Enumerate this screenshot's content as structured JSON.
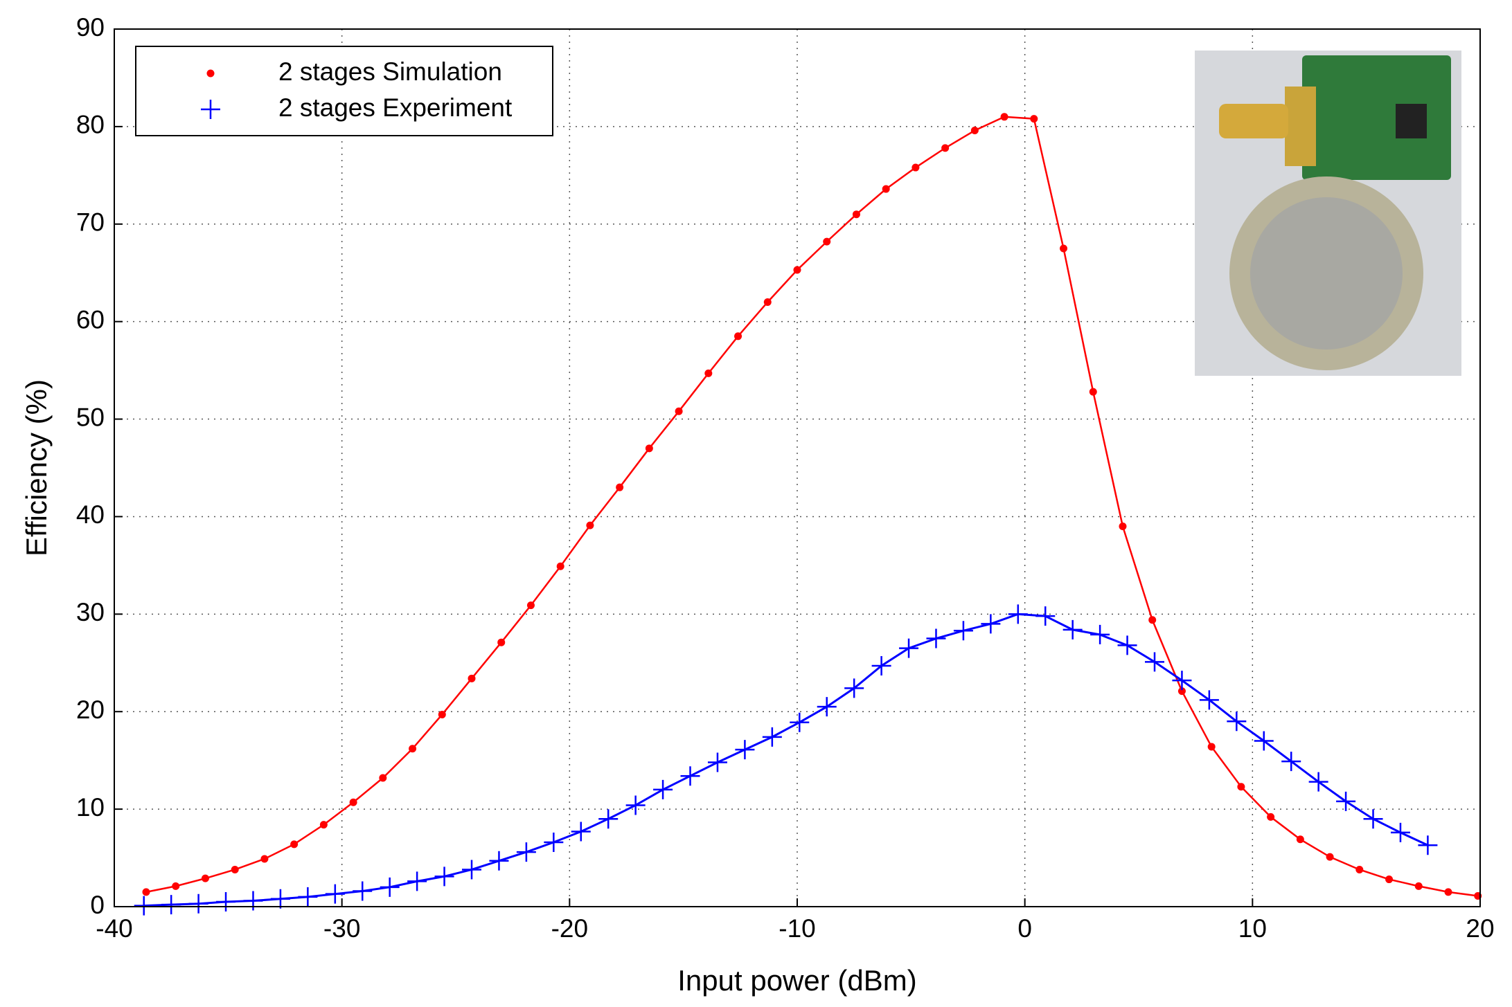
{
  "chart_data": {
    "type": "line",
    "xlabel": "Input power (dBm)",
    "ylabel": "Efficiency (%)",
    "xlim": [
      -40,
      20
    ],
    "xticks": [
      -40,
      -30,
      -20,
      -10,
      0,
      10,
      20
    ],
    "ylim": [
      0,
      90
    ],
    "yticks": [
      0,
      10,
      20,
      30,
      40,
      50,
      60,
      70,
      80,
      90
    ],
    "grid": true,
    "legend": "upper left",
    "series": [
      {
        "name": "2 stages Simulation",
        "color": "#ff0000",
        "marker": "dot",
        "x": [
          -38.6,
          -37.3,
          -36.0,
          -34.7,
          -33.4,
          -32.1,
          -30.8,
          -29.5,
          -28.2,
          -26.9,
          -25.6,
          -24.3,
          -23.0,
          -21.7,
          -20.4,
          -19.1,
          -17.8,
          -16.5,
          -15.2,
          -13.9,
          -12.6,
          -11.3,
          -10.0,
          -8.7,
          -7.4,
          -6.1,
          -4.8,
          -3.5,
          -2.2,
          -0.9,
          0.4,
          1.7,
          3.0,
          4.3,
          5.6,
          6.9,
          8.2,
          9.5,
          10.8,
          12.1,
          13.4,
          14.7,
          16.0,
          17.3,
          18.6,
          19.9
        ],
        "values": [
          1.5,
          2.1,
          2.9,
          3.8,
          4.9,
          6.4,
          8.4,
          10.7,
          13.2,
          16.2,
          19.7,
          23.4,
          27.1,
          30.9,
          34.9,
          39.1,
          43.0,
          47.0,
          50.8,
          54.7,
          58.5,
          62.0,
          65.3,
          68.2,
          71.0,
          73.6,
          75.8,
          77.8,
          79.6,
          81.0,
          80.8,
          67.5,
          52.8,
          39.0,
          29.4,
          22.1,
          16.4,
          12.3,
          9.2,
          6.9,
          5.1,
          3.8,
          2.8,
          2.1,
          1.5,
          1.1
        ]
      },
      {
        "name": "2 stages Experiment",
        "color": "#0000ff",
        "marker": "plus",
        "x": [
          -38.7,
          -37.5,
          -36.3,
          -35.1,
          -33.9,
          -32.7,
          -31.5,
          -30.3,
          -29.1,
          -27.9,
          -26.7,
          -25.5,
          -24.3,
          -23.1,
          -21.9,
          -20.7,
          -19.5,
          -18.3,
          -17.1,
          -15.9,
          -14.7,
          -13.5,
          -12.3,
          -11.1,
          -9.9,
          -8.7,
          -7.5,
          -6.3,
          -5.1,
          -3.9,
          -2.7,
          -1.5,
          -0.3,
          0.9,
          2.1,
          3.3,
          4.5,
          5.7,
          6.9,
          8.1,
          9.3,
          10.5,
          11.7,
          12.9,
          14.1,
          15.3,
          16.5,
          17.7
        ],
        "values": [
          0.1,
          0.2,
          0.3,
          0.5,
          0.6,
          0.8,
          1.0,
          1.3,
          1.6,
          2.0,
          2.6,
          3.1,
          3.8,
          4.7,
          5.6,
          6.6,
          7.7,
          9.0,
          10.4,
          12.0,
          13.4,
          14.8,
          16.1,
          17.4,
          18.9,
          20.5,
          22.4,
          24.7,
          26.5,
          27.5,
          28.3,
          29.0,
          30.0,
          29.8,
          28.4,
          27.9,
          26.8,
          25.1,
          23.2,
          21.2,
          19.0,
          17.0,
          14.9,
          12.8,
          10.8,
          9.0,
          7.6,
          6.3
        ]
      }
    ]
  }
}
